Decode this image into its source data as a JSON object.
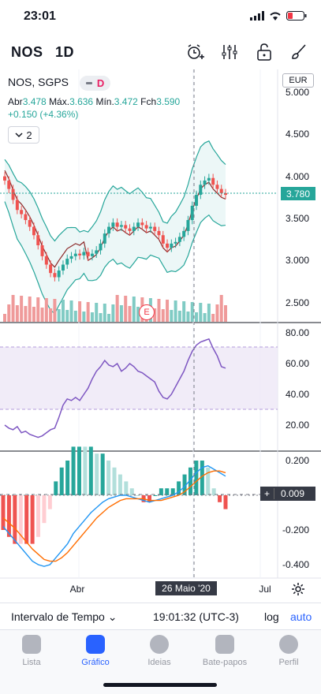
{
  "status": {
    "time": "23:01"
  },
  "header": {
    "symbol": "NOS",
    "interval": "1D"
  },
  "legend": {
    "name": "NOS, SGPS",
    "pill_label": "D",
    "ab_label": "Abr",
    "ab_value": "3.478",
    "max_label": "Máx.",
    "max_value": "3.636",
    "min_label": "Mín.",
    "min_value": "3.472",
    "close_label": "Fch",
    "close_value": "3.590",
    "change": "+0.150 (+4.36%)",
    "collapse_count": "2"
  },
  "currency": "EUR",
  "price_axis": [
    "5.000",
    "4.500",
    "4.000",
    "3.500",
    "3.000",
    "2.500"
  ],
  "last_price": "3.780",
  "rsi_axis": [
    "80.00",
    "60.00",
    "40.00",
    "20.00"
  ],
  "macd_axis": [
    "0.200",
    "-0.200",
    "-0.400"
  ],
  "macd_value": "0.009",
  "time_axis": {
    "apr": "Abr",
    "jul": "Jul",
    "crosshair_date": "26 Maio '20"
  },
  "earnings_badge": "E",
  "bottom": {
    "interval_label": "Intervalo de Tempo",
    "clock": "19:01:32 (UTC-3)",
    "log": "log",
    "auto": "auto"
  },
  "tabs": [
    {
      "label": "Lista",
      "icon": "list-icon"
    },
    {
      "label": "Gráfico",
      "icon": "chart-icon"
    },
    {
      "label": "Ideias",
      "icon": "ideas-icon"
    },
    {
      "label": "Bate-papos",
      "icon": "chat-icon"
    },
    {
      "label": "Perfil",
      "icon": "profile-icon"
    }
  ],
  "colors": {
    "up": "#26a69a",
    "down": "#ef5350",
    "accent": "#2962ff",
    "rsi": "#7e57c2"
  },
  "chart_data": [
    {
      "type": "candlestick",
      "series": [
        {
          "name": "price",
          "values": [
            3.95,
            3.85,
            3.72,
            3.6,
            3.55,
            3.48,
            3.4,
            3.3,
            3.18,
            3.05,
            2.95,
            2.85,
            2.8,
            2.88,
            2.95,
            3.02,
            3.05,
            3.08,
            3.06,
            3.1,
            3.05,
            3.08,
            3.12,
            3.2,
            3.32,
            3.4,
            3.45,
            3.4,
            3.42,
            3.38,
            3.35,
            3.4,
            3.45,
            3.42,
            3.38,
            3.4,
            3.35,
            3.3,
            3.2,
            3.15,
            3.2,
            3.22,
            3.28,
            3.35,
            3.48,
            3.65,
            3.78,
            3.9,
            3.95,
            3.98,
            3.9,
            3.85,
            3.8,
            3.78
          ]
        }
      ]
    },
    {
      "type": "line",
      "series": [
        {
          "name": "rsi",
          "values": [
            20,
            18,
            17,
            19,
            15,
            16,
            14,
            13,
            12,
            13,
            15,
            17,
            18,
            25,
            33,
            37,
            36,
            38,
            36,
            40,
            44,
            50,
            55,
            58,
            62,
            59,
            58,
            60,
            55,
            57,
            60,
            58,
            55,
            54,
            52,
            50,
            48,
            42,
            38,
            37,
            40,
            45,
            50,
            55,
            62,
            68,
            72,
            74,
            75,
            76,
            70,
            65,
            58,
            57
          ]
        }
      ],
      "ylim": [
        0,
        90
      ]
    },
    {
      "type": "line",
      "series": [
        {
          "name": "macd",
          "values": [
            -0.18,
            -0.22,
            -0.26,
            -0.3,
            -0.34,
            -0.38,
            -0.4,
            -0.41,
            -0.4,
            -0.36,
            -0.32,
            -0.28,
            -0.22,
            -0.18,
            -0.14,
            -0.1,
            -0.07,
            -0.04,
            -0.02,
            -0.01,
            0.0,
            0.0,
            -0.01,
            -0.02,
            -0.03,
            -0.04,
            -0.03,
            -0.02,
            -0.01,
            0.0,
            0.02,
            0.05,
            0.09,
            0.13,
            0.16,
            0.17,
            0.15,
            0.13,
            0.11
          ]
        },
        {
          "name": "signal",
          "values": [
            -0.13,
            -0.16,
            -0.19,
            -0.23,
            -0.27,
            -0.31,
            -0.34,
            -0.37,
            -0.38,
            -0.38,
            -0.36,
            -0.33,
            -0.29,
            -0.25,
            -0.21,
            -0.17,
            -0.13,
            -0.1,
            -0.07,
            -0.05,
            -0.03,
            -0.02,
            -0.02,
            -0.02,
            -0.02,
            -0.03,
            -0.03,
            -0.03,
            -0.02,
            -0.01,
            0.0,
            0.02,
            0.05,
            0.08,
            0.11,
            0.13,
            0.14,
            0.14,
            0.13
          ]
        }
      ],
      "ylim": [
        -0.45,
        0.25
      ]
    }
  ]
}
